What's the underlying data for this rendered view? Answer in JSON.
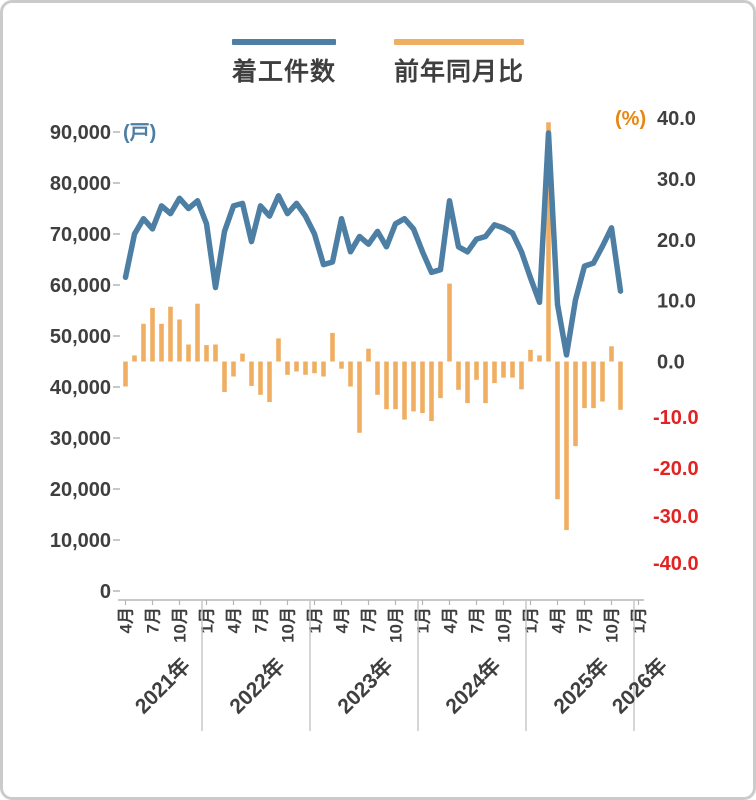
{
  "legend": {
    "line_label": "着工件数",
    "bar_label": "前年同月比"
  },
  "axes": {
    "left_unit": "(戸)",
    "right_unit": "(%)",
    "left_ticks": [
      "90,000",
      "80,000",
      "70,000",
      "60,000",
      "50,000",
      "40,000",
      "30,000",
      "20,000",
      "10,000",
      "0"
    ],
    "right_ticks_positive": [
      "40.0",
      "30.0",
      "20.0",
      "10.0",
      "0.0"
    ],
    "right_ticks_negative": [
      "-10.0",
      "-20.0",
      "-30.0",
      "-40.0"
    ],
    "left_range": [
      0,
      90000
    ],
    "right_range": [
      -40,
      40
    ]
  },
  "colors": {
    "line": "#4d7ea4",
    "bar": "#f0ae62",
    "left_unit": "#4d7ea4",
    "right_unit": "#e8860d",
    "tick_text": "#3f3f3f",
    "negative_text": "#e32222",
    "axis_line": "#b5b5b5",
    "separator": "#c9c9c9"
  },
  "chart_data": {
    "type": "line+bar (dual axis)",
    "title": "",
    "x": [
      "2021-04",
      "2021-05",
      "2021-06",
      "2021-07",
      "2021-08",
      "2021-09",
      "2021-10",
      "2021-11",
      "2021-12",
      "2022-01",
      "2022-02",
      "2022-03",
      "2022-04",
      "2022-05",
      "2022-06",
      "2022-07",
      "2022-08",
      "2022-09",
      "2022-10",
      "2022-11",
      "2022-12",
      "2023-01",
      "2023-02",
      "2023-03",
      "2023-04",
      "2023-05",
      "2023-06",
      "2023-07",
      "2023-08",
      "2023-09",
      "2023-10",
      "2023-11",
      "2023-12",
      "2024-01",
      "2024-02",
      "2024-03",
      "2024-04",
      "2024-05",
      "2024-06",
      "2024-07",
      "2024-08",
      "2024-09",
      "2024-10",
      "2024-11",
      "2024-12",
      "2025-01",
      "2025-02",
      "2025-03",
      "2025-04",
      "2025-05",
      "2025-06",
      "2025-07",
      "2025-08",
      "2025-09",
      "2025-10",
      "2025-11"
    ],
    "series": [
      {
        "name": "着工件数",
        "type": "line",
        "axis": "left",
        "unit": "戸",
        "values": [
          61500,
          70000,
          73000,
          71000,
          75500,
          74000,
          77000,
          75000,
          76500,
          72000,
          59500,
          70500,
          75500,
          76000,
          68500,
          75500,
          73500,
          77500,
          74000,
          76000,
          73500,
          70000,
          64000,
          64500,
          73000,
          66500,
          69500,
          68000,
          70500,
          67500,
          72000,
          73000,
          71000,
          66500,
          62500,
          63000,
          76500,
          67500,
          66500,
          69000,
          69500,
          71800,
          71200,
          70200,
          66500,
          61400,
          56600,
          89800,
          56200,
          46300,
          57100,
          63700,
          64300,
          67600,
          71200,
          58800
        ]
      },
      {
        "name": "前年同月比",
        "type": "bar",
        "axis": "right",
        "unit": "%",
        "values": [
          -4.5,
          1.0,
          6.2,
          8.8,
          6.2,
          9.0,
          6.9,
          2.8,
          9.5,
          2.7,
          2.8,
          -5.5,
          -2.7,
          1.3,
          -4.4,
          -6.0,
          -7.3,
          3.8,
          -2.4,
          -1.8,
          -2.4,
          -2.1,
          -2.7,
          4.7,
          -1.3,
          -4.5,
          -13.1,
          2.1,
          -6.0,
          -8.6,
          -8.6,
          -10.5,
          -9.0,
          -9.3,
          -10.8,
          -6.6,
          12.8,
          -5.1,
          -7.5,
          -3.3,
          -7.5,
          -3.9,
          -2.9,
          -2.9,
          -5.0,
          1.9,
          1.0,
          39.3,
          -26.5,
          -33.0,
          -15.7,
          -8.4,
          -8.4,
          -7.2,
          2.5,
          -8.7
        ]
      }
    ],
    "x_axis": {
      "month_ticks": [
        {
          "index": 0,
          "label": "4月"
        },
        {
          "index": 3,
          "label": "7月"
        },
        {
          "index": 6,
          "label": "10月"
        },
        {
          "index": 9,
          "label": "1月"
        },
        {
          "index": 12,
          "label": "4月"
        },
        {
          "index": 15,
          "label": "7月"
        },
        {
          "index": 18,
          "label": "10月"
        },
        {
          "index": 21,
          "label": "1月"
        },
        {
          "index": 24,
          "label": "4月"
        },
        {
          "index": 27,
          "label": "7月"
        },
        {
          "index": 30,
          "label": "10月"
        },
        {
          "index": 33,
          "label": "1月"
        },
        {
          "index": 36,
          "label": "4月"
        },
        {
          "index": 39,
          "label": "7月"
        },
        {
          "index": 42,
          "label": "10月"
        },
        {
          "index": 45,
          "label": "1月"
        },
        {
          "index": 48,
          "label": "4月"
        },
        {
          "index": 51,
          "label": "7月"
        },
        {
          "index": 54,
          "label": "10月"
        },
        {
          "index": 57,
          "label": "1月"
        }
      ],
      "years": [
        {
          "label": "2021年",
          "start": 0,
          "end": 8
        },
        {
          "label": "2022年",
          "start": 9,
          "end": 20
        },
        {
          "label": "2023年",
          "start": 21,
          "end": 32
        },
        {
          "label": "2024年",
          "start": 33,
          "end": 44
        },
        {
          "label": "2025年",
          "start": 45,
          "end": 56
        },
        {
          "label": "2026年",
          "start": 57,
          "end": 57
        }
      ]
    },
    "legend_position": "top-center",
    "grid": false
  }
}
